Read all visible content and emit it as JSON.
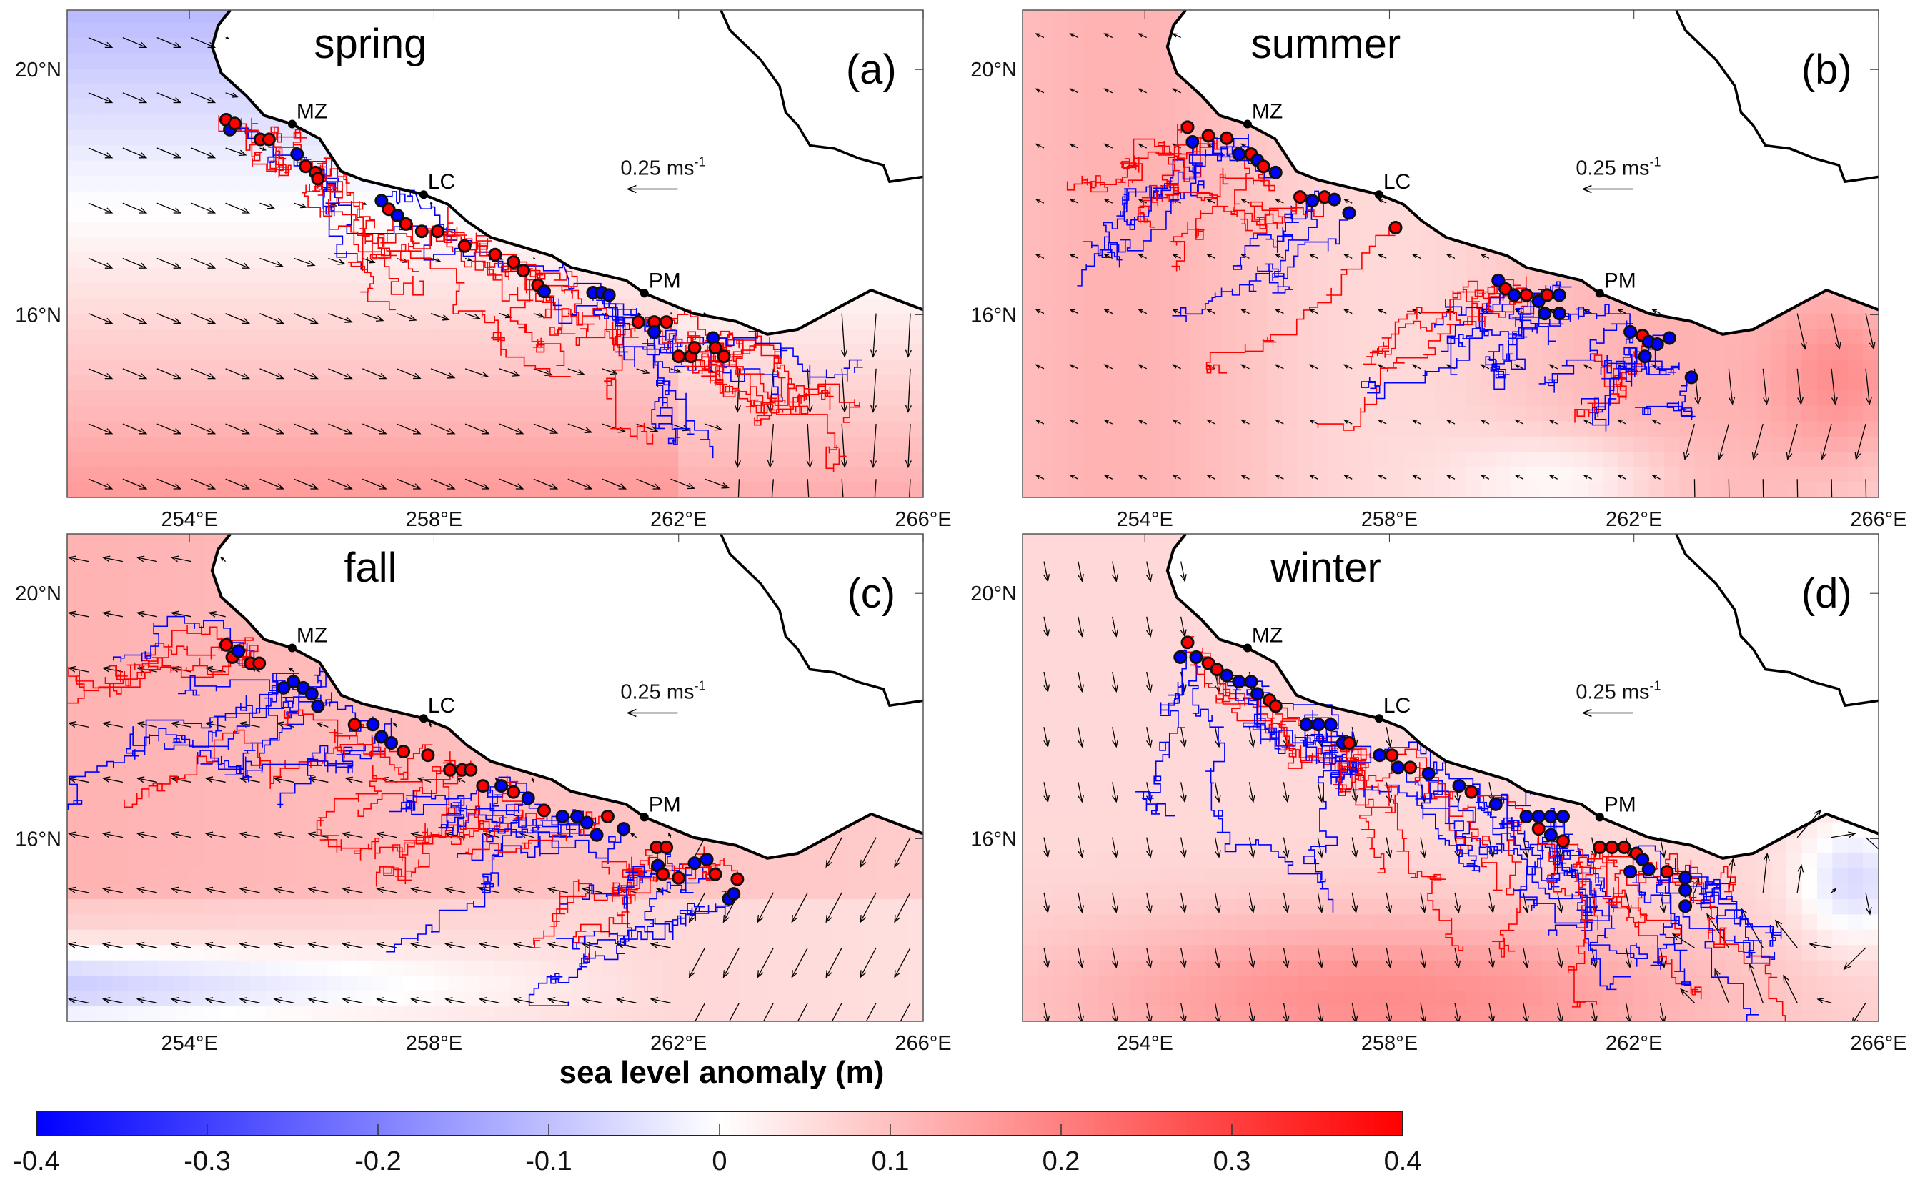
{
  "figure": {
    "colorbar": {
      "label": "sea level anomaly (m)",
      "min": -0.4,
      "max": 0.4,
      "ticks": [
        "-0.4",
        "-0.3",
        "-0.2",
        "-0.1",
        "0",
        "0.1",
        "0.2",
        "0.3",
        "0.4"
      ],
      "colors": {
        "low": "#0000ff",
        "mid": "#ffffff",
        "high": "#ff0000"
      }
    },
    "lon_ticks": [
      "254°E",
      "258°E",
      "262°E",
      "266°E"
    ],
    "lat_ticks": [
      "20°N",
      "16°N"
    ],
    "lon_range": [
      252,
      266
    ],
    "lat_range": [
      13.02,
      20.97
    ],
    "scale_arrow_label": "0.25 ms",
    "scale_arrow_exp": "-1",
    "cities": [
      {
        "name": "MZ",
        "lon": 255.68,
        "lat": 19.11
      },
      {
        "name": "LC",
        "lon": 257.83,
        "lat": 17.96
      },
      {
        "name": "PM",
        "lon": 261.44,
        "lat": 16.35
      }
    ],
    "track_colors": {
      "r": "#ff0000",
      "b": "#0000ff"
    },
    "panels": [
      {
        "season": "spring",
        "letter": "(a)",
        "dots": [
          [
            254.6,
            19.18,
            "r"
          ],
          [
            254.66,
            19.02,
            "b"
          ],
          [
            254.74,
            19.12,
            "r"
          ],
          [
            255.16,
            18.86,
            "r"
          ],
          [
            255.3,
            18.86,
            "r"
          ],
          [
            255.76,
            18.62,
            "b"
          ],
          [
            255.9,
            18.42,
            "r"
          ],
          [
            256.06,
            18.32,
            "r"
          ],
          [
            256.1,
            18.22,
            "r"
          ],
          [
            257.14,
            17.86,
            "b"
          ],
          [
            257.26,
            17.72,
            "r"
          ],
          [
            257.4,
            17.62,
            "b"
          ],
          [
            257.54,
            17.48,
            "r"
          ],
          [
            257.8,
            17.36,
            "r"
          ],
          [
            258.06,
            17.36,
            "r"
          ],
          [
            258.5,
            17.12,
            "r"
          ],
          [
            259.0,
            16.98,
            "r"
          ],
          [
            259.3,
            16.86,
            "r"
          ],
          [
            259.46,
            16.72,
            "r"
          ],
          [
            259.7,
            16.48,
            "r"
          ],
          [
            259.8,
            16.38,
            "b"
          ],
          [
            260.6,
            16.36,
            "b"
          ],
          [
            260.74,
            16.36,
            "b"
          ],
          [
            260.86,
            16.32,
            "b"
          ],
          [
            261.34,
            15.88,
            "r"
          ],
          [
            261.6,
            15.88,
            "r"
          ],
          [
            261.8,
            15.88,
            "r"
          ],
          [
            261.6,
            15.72,
            "b"
          ],
          [
            262.0,
            15.32,
            "r"
          ],
          [
            262.2,
            15.32,
            "r"
          ],
          [
            262.26,
            15.46,
            "r"
          ],
          [
            262.56,
            15.62,
            "b"
          ],
          [
            262.6,
            15.46,
            "r"
          ],
          [
            262.74,
            15.32,
            "r"
          ]
        ]
      },
      {
        "season": "summer",
        "letter": "(b)",
        "dots": [
          [
            254.7,
            19.06,
            "r"
          ],
          [
            254.78,
            18.82,
            "b"
          ],
          [
            255.04,
            18.92,
            "r"
          ],
          [
            255.34,
            18.88,
            "r"
          ],
          [
            255.54,
            18.62,
            "b"
          ],
          [
            255.74,
            18.62,
            "r"
          ],
          [
            255.84,
            18.52,
            "b"
          ],
          [
            255.94,
            18.42,
            "r"
          ],
          [
            256.14,
            18.32,
            "b"
          ],
          [
            256.54,
            17.92,
            "r"
          ],
          [
            256.74,
            17.86,
            "b"
          ],
          [
            256.94,
            17.92,
            "r"
          ],
          [
            257.1,
            17.88,
            "b"
          ],
          [
            257.34,
            17.66,
            "b"
          ],
          [
            258.1,
            17.42,
            "r"
          ],
          [
            259.78,
            16.56,
            "b"
          ],
          [
            259.9,
            16.42,
            "r"
          ],
          [
            260.04,
            16.32,
            "b"
          ],
          [
            260.24,
            16.32,
            "r"
          ],
          [
            260.44,
            16.22,
            "b"
          ],
          [
            260.58,
            16.32,
            "r"
          ],
          [
            260.78,
            16.32,
            "b"
          ],
          [
            260.54,
            16.02,
            "b"
          ],
          [
            260.78,
            16.02,
            "b"
          ],
          [
            261.94,
            15.72,
            "b"
          ],
          [
            262.14,
            15.66,
            "r"
          ],
          [
            262.24,
            15.56,
            "b"
          ],
          [
            262.38,
            15.52,
            "b"
          ],
          [
            262.58,
            15.62,
            "b"
          ],
          [
            262.18,
            15.32,
            "b"
          ],
          [
            262.94,
            14.98,
            "b"
          ]
        ]
      },
      {
        "season": "fall",
        "letter": "(c)",
        "dots": [
          [
            254.6,
            19.16,
            "r"
          ],
          [
            254.7,
            18.96,
            "r"
          ],
          [
            254.8,
            19.06,
            "b"
          ],
          [
            255.0,
            18.86,
            "r"
          ],
          [
            255.14,
            18.86,
            "r"
          ],
          [
            255.54,
            18.46,
            "b"
          ],
          [
            255.7,
            18.56,
            "b"
          ],
          [
            255.86,
            18.46,
            "b"
          ],
          [
            256.0,
            18.36,
            "b"
          ],
          [
            256.1,
            18.16,
            "b"
          ],
          [
            256.7,
            17.86,
            "r"
          ],
          [
            257.0,
            17.86,
            "b"
          ],
          [
            257.14,
            17.66,
            "b"
          ],
          [
            257.3,
            17.56,
            "b"
          ],
          [
            257.5,
            17.42,
            "r"
          ],
          [
            257.9,
            17.36,
            "r"
          ],
          [
            258.26,
            17.12,
            "r"
          ],
          [
            258.46,
            17.12,
            "r"
          ],
          [
            258.6,
            17.12,
            "r"
          ],
          [
            258.8,
            16.86,
            "r"
          ],
          [
            259.1,
            16.86,
            "b"
          ],
          [
            259.3,
            16.76,
            "r"
          ],
          [
            259.54,
            16.66,
            "b"
          ],
          [
            259.8,
            16.46,
            "r"
          ],
          [
            260.1,
            16.36,
            "b"
          ],
          [
            260.34,
            16.36,
            "b"
          ],
          [
            260.5,
            16.26,
            "b"
          ],
          [
            260.66,
            16.06,
            "b"
          ],
          [
            260.84,
            16.36,
            "r"
          ],
          [
            261.1,
            16.16,
            "b"
          ],
          [
            261.64,
            15.86,
            "r"
          ],
          [
            261.8,
            15.86,
            "r"
          ],
          [
            261.66,
            15.56,
            "b"
          ],
          [
            261.74,
            15.42,
            "r"
          ],
          [
            262.0,
            15.36,
            "r"
          ],
          [
            262.26,
            15.6,
            "b"
          ],
          [
            262.46,
            15.66,
            "b"
          ],
          [
            262.6,
            15.42,
            "r"
          ],
          [
            262.82,
            15.02,
            "b"
          ],
          [
            262.96,
            15.34,
            "r"
          ],
          [
            262.9,
            15.1,
            "b"
          ]
        ]
      },
      {
        "season": "winter",
        "letter": "(d)",
        "dots": [
          [
            254.7,
            19.2,
            "r"
          ],
          [
            254.58,
            18.96,
            "b"
          ],
          [
            254.84,
            18.96,
            "b"
          ],
          [
            255.04,
            18.86,
            "r"
          ],
          [
            255.18,
            18.76,
            "r"
          ],
          [
            255.34,
            18.66,
            "b"
          ],
          [
            255.54,
            18.56,
            "b"
          ],
          [
            255.74,
            18.56,
            "b"
          ],
          [
            255.84,
            18.36,
            "b"
          ],
          [
            256.04,
            18.26,
            "r"
          ],
          [
            256.14,
            18.16,
            "r"
          ],
          [
            256.64,
            17.86,
            "b"
          ],
          [
            256.84,
            17.86,
            "b"
          ],
          [
            257.04,
            17.86,
            "b"
          ],
          [
            257.24,
            17.56,
            "b"
          ],
          [
            257.34,
            17.56,
            "r"
          ],
          [
            257.84,
            17.36,
            "b"
          ],
          [
            258.04,
            17.36,
            "r"
          ],
          [
            258.14,
            17.16,
            "b"
          ],
          [
            258.34,
            17.16,
            "r"
          ],
          [
            258.64,
            17.06,
            "b"
          ],
          [
            259.14,
            16.86,
            "b"
          ],
          [
            259.34,
            16.76,
            "r"
          ],
          [
            259.74,
            16.56,
            "b"
          ],
          [
            260.24,
            16.36,
            "b"
          ],
          [
            260.44,
            16.36,
            "b"
          ],
          [
            260.64,
            16.36,
            "b"
          ],
          [
            260.84,
            16.36,
            "b"
          ],
          [
            260.44,
            16.16,
            "r"
          ],
          [
            260.64,
            16.06,
            "b"
          ],
          [
            260.84,
            15.96,
            "r"
          ],
          [
            261.44,
            15.86,
            "r"
          ],
          [
            261.64,
            15.86,
            "r"
          ],
          [
            261.84,
            15.86,
            "r"
          ],
          [
            262.04,
            15.76,
            "r"
          ],
          [
            262.14,
            15.66,
            "b"
          ],
          [
            261.94,
            15.46,
            "b"
          ],
          [
            262.24,
            15.5,
            "b"
          ],
          [
            262.54,
            15.46,
            "r"
          ],
          [
            262.84,
            15.36,
            "b"
          ],
          [
            262.84,
            15.16,
            "b"
          ],
          [
            262.84,
            14.9,
            "b"
          ]
        ]
      }
    ]
  }
}
